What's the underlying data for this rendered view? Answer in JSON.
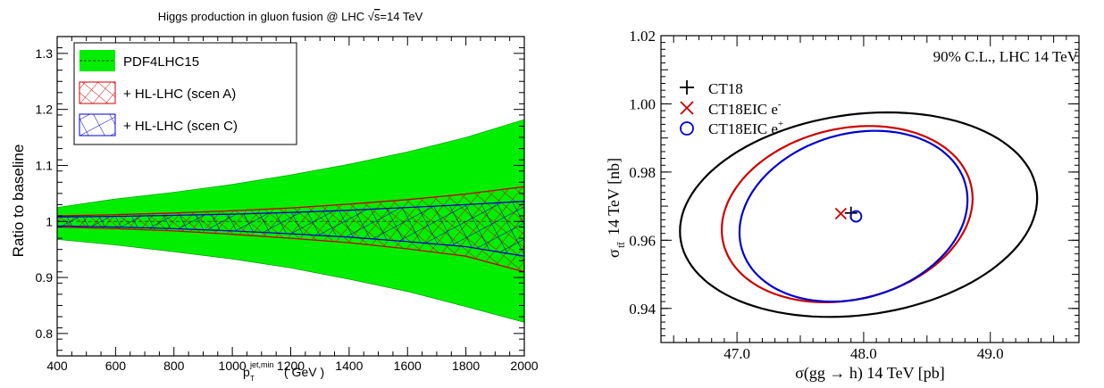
{
  "colors": {
    "green": "#00ee00",
    "red": "#cc0000",
    "blue": "#0000cc",
    "black": "#000000"
  },
  "chart_data": [
    {
      "type": "area",
      "title": "Higgs production in gluon fusion @ LHC √s=14 TeV",
      "title_parts": {
        "main": "Higgs production in gluon fusion @ LHC ",
        "sqrt": "√",
        "s": "s",
        "rest": "=14 TeV"
      },
      "xlabel": "( GeV )",
      "xlabel_parts": {
        "p": "p",
        "sub": "T",
        "sup": "jet,min",
        "unit": "( GeV )"
      },
      "ylabel": "Ratio to baseline",
      "xlim": [
        400,
        2000
      ],
      "ylim": [
        0.76,
        1.33
      ],
      "x_ticks": [
        400,
        600,
        800,
        1000,
        1200,
        1400,
        1600,
        1800,
        2000
      ],
      "x_tick_labels": [
        "400",
        "600",
        "800",
        "1000",
        "1200",
        "1400",
        "1600",
        "1800",
        "2000"
      ],
      "y_ticks": [
        0.8,
        0.9,
        1.0,
        1.1,
        1.2,
        1.3
      ],
      "y_tick_labels": [
        "0.8",
        "0.9",
        "1",
        "1.1",
        "1.2",
        "1.3"
      ],
      "legend_position": "top-left",
      "series": [
        {
          "name": "PDF4LHC15",
          "style": "green-band",
          "x": [
            400,
            600,
            800,
            1000,
            1200,
            1400,
            1600,
            1800,
            2000
          ],
          "upper": [
            1.025,
            1.04,
            1.052,
            1.066,
            1.083,
            1.102,
            1.124,
            1.15,
            1.182
          ],
          "lower": [
            0.968,
            0.958,
            0.946,
            0.933,
            0.917,
            0.897,
            0.875,
            0.848,
            0.82
          ]
        },
        {
          "name": "+ HL-LHC (scen A)",
          "style": "red-hatch",
          "x": [
            400,
            600,
            800,
            1000,
            1200,
            1400,
            1600,
            1800,
            2000
          ],
          "upper": [
            1.01,
            1.012,
            1.015,
            1.019,
            1.024,
            1.031,
            1.039,
            1.049,
            1.062
          ],
          "lower": [
            0.99,
            0.987,
            0.983,
            0.977,
            0.97,
            0.962,
            0.951,
            0.938,
            0.91
          ]
        },
        {
          "name": "+ HL-LHC (scen C)",
          "style": "blue-hatch",
          "x": [
            400,
            600,
            800,
            1000,
            1200,
            1400,
            1600,
            1800,
            2000
          ],
          "upper": [
            1.008,
            1.009,
            1.011,
            1.013,
            1.016,
            1.02,
            1.025,
            1.03,
            1.036
          ],
          "lower": [
            0.992,
            0.99,
            0.987,
            0.983,
            0.978,
            0.972,
            0.964,
            0.955,
            0.938
          ]
        }
      ]
    },
    {
      "type": "scatter",
      "title": "90% C.L., LHC 14 TeV",
      "xlabel": "σ(gg → h) 14 TeV [pb]",
      "ylabel": "σtt̄ 14 TeV [nb]",
      "ylabel_parts": {
        "sigma": "σ",
        "sub": "tt̄",
        "rest": " 14 TeV [nb]"
      },
      "xlim": [
        46.4,
        49.7
      ],
      "ylim": [
        0.93,
        1.02
      ],
      "x_ticks": [
        47.0,
        48.0,
        49.0
      ],
      "x_tick_labels": [
        "47.0",
        "48.0",
        "49.0"
      ],
      "y_ticks": [
        0.94,
        0.96,
        0.98,
        1.0,
        1.02
      ],
      "y_tick_labels": [
        "0.94",
        "0.96",
        "0.98",
        "1.00",
        "1.02"
      ],
      "legend_position": "top-left",
      "series": [
        {
          "name": "CT18",
          "marker": "plus",
          "color": "#000000",
          "center": [
            47.9,
            0.968
          ],
          "ellipse": {
            "extent_x": [
              46.55,
              49.37
            ],
            "extent_y": [
              0.9375,
              0.9975
            ],
            "tilt": 0.0034
          }
        },
        {
          "name": "CT18EIC e⁻",
          "label": "CT18EIC e",
          "sup": "-",
          "marker": "cross",
          "color": "#cc0000",
          "center": [
            47.82,
            0.9678
          ],
          "ellipse": {
            "extent_x": [
              46.88,
              48.86
            ],
            "extent_y": [
              0.9418,
              0.9935
            ],
            "tilt": 0.0037
          }
        },
        {
          "name": "CT18EIC e⁺",
          "label": "CT18EIC e",
          "sup": "+",
          "marker": "circle",
          "color": "#0000cc",
          "center": [
            47.94,
            0.967
          ],
          "ellipse": {
            "extent_x": [
              47.02,
              48.82
            ],
            "extent_y": [
              0.942,
              0.9921
            ],
            "tilt": 0.004
          }
        }
      ]
    }
  ]
}
